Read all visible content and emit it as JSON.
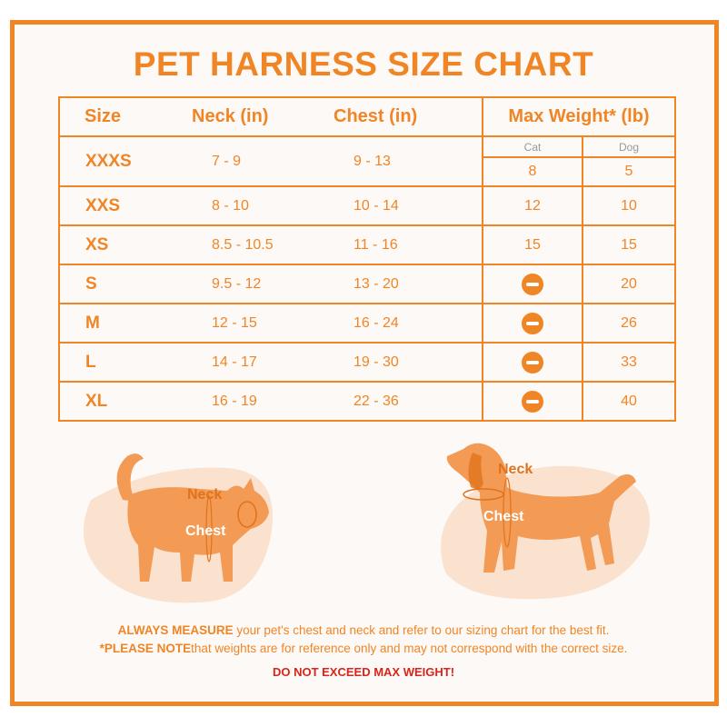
{
  "title": "PET HARNESS SIZE CHART",
  "table": {
    "headers": {
      "size": "Size",
      "neck": "Neck (in)",
      "chest": "Chest (in)",
      "max_weight": "Max Weight* (lb)",
      "cat": "Cat",
      "dog": "Dog"
    },
    "rows": [
      {
        "size": "XXXS",
        "neck": "7 - 9",
        "chest": "9 - 13",
        "cat": "8",
        "dog": "5"
      },
      {
        "size": "XXS",
        "neck": "8 - 10",
        "chest": "10 - 14",
        "cat": "12",
        "dog": "10"
      },
      {
        "size": "XS",
        "neck": "8.5 - 10.5",
        "chest": "11 - 16",
        "cat": "15",
        "dog": "15"
      },
      {
        "size": "S",
        "neck": "9.5 - 12",
        "chest": "13 - 20",
        "cat": "",
        "dog": "20"
      },
      {
        "size": "M",
        "neck": "12 - 15",
        "chest": "16 - 24",
        "cat": "",
        "dog": "26"
      },
      {
        "size": "L",
        "neck": "14 - 17",
        "chest": "19 - 30",
        "cat": "",
        "dog": "33"
      },
      {
        "size": "XL",
        "neck": "16 - 19",
        "chest": "22 - 36",
        "cat": "",
        "dog": "40"
      }
    ]
  },
  "illustrations": {
    "cat": {
      "neck": "Neck",
      "chest": "Chest"
    },
    "dog": {
      "neck": "Neck",
      "chest": "Chest"
    }
  },
  "footer": {
    "line1_bold": "ALWAYS MEASURE",
    "line1_rest": " your pet's chest and neck and refer to our sizing chart for the best fit.",
    "line2_bold": "*PLEASE NOTE",
    "line2_rest": "that weights are for reference only and may not correspond with the correct size.",
    "warning": "DO NOT EXCEED MAX WEIGHT!"
  },
  "colors": {
    "accent": "#f08526",
    "pet": "#f39a54",
    "blob": "#fae2cf",
    "warning": "#d9241c"
  },
  "icons": {
    "not_applicable": "minus-circle-icon"
  }
}
